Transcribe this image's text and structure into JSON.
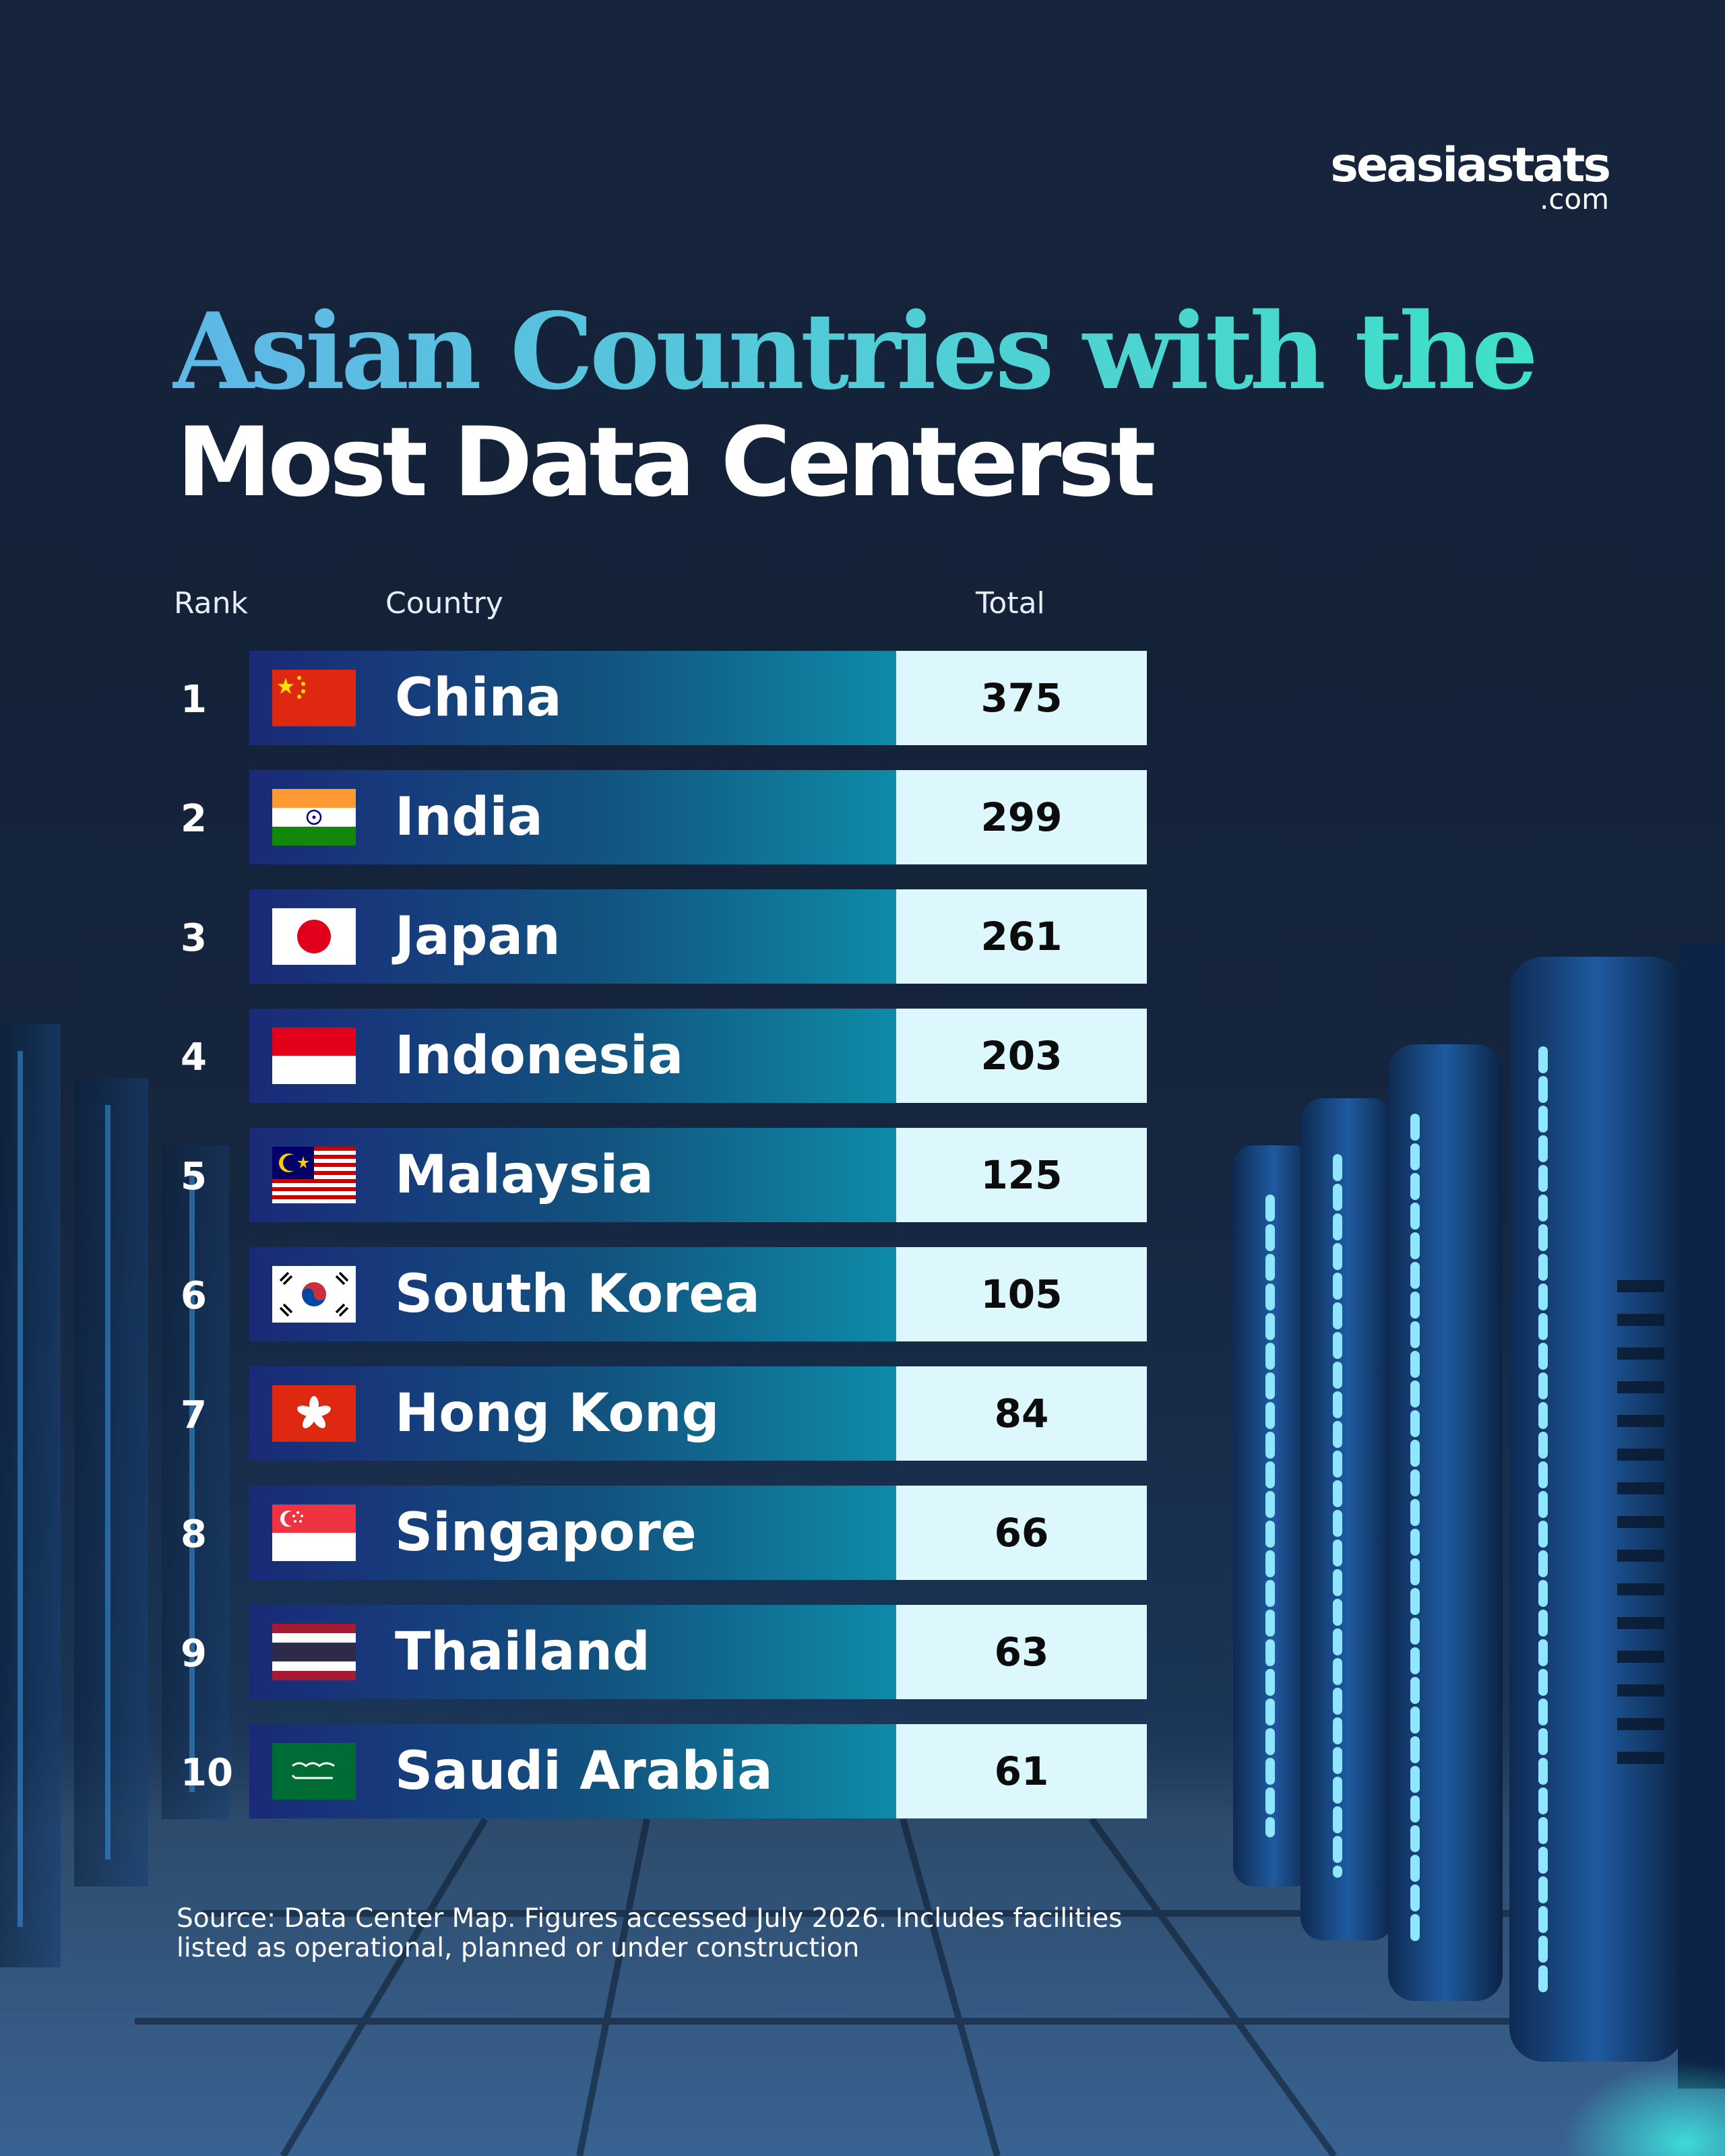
{
  "brand": {
    "name": "seasiastats",
    "suffix": ".com"
  },
  "title": {
    "line1": "Asian Countries with the",
    "line2": "Most Data Centerst"
  },
  "headers": {
    "rank": "Rank",
    "country": "Country",
    "total": "Total"
  },
  "chart_data": {
    "type": "table",
    "columns": [
      "Rank",
      "Country",
      "Total"
    ],
    "rows": [
      {
        "rank": "1",
        "country": "China",
        "total": 375,
        "flag": "china-flag-icon"
      },
      {
        "rank": "2",
        "country": "India",
        "total": 299,
        "flag": "india-flag-icon"
      },
      {
        "rank": "3",
        "country": "Japan",
        "total": 261,
        "flag": "japan-flag-icon"
      },
      {
        "rank": "4",
        "country": "Indonesia",
        "total": 203,
        "flag": "indonesia-flag-icon"
      },
      {
        "rank": "5",
        "country": "Malaysia",
        "total": 125,
        "flag": "malaysia-flag-icon"
      },
      {
        "rank": "6",
        "country": "South Korea",
        "total": 105,
        "flag": "south-korea-flag-icon"
      },
      {
        "rank": "7",
        "country": "Hong Kong",
        "total": 84,
        "flag": "hong-kong-flag-icon"
      },
      {
        "rank": "8",
        "country": "Singapore",
        "total": 66,
        "flag": "singapore-flag-icon"
      },
      {
        "rank": "9",
        "country": "Thailand",
        "total": 63,
        "flag": "thailand-flag-icon"
      },
      {
        "rank": "10",
        "country": "Saudi Arabia",
        "total": 61,
        "flag": "saudi-arabia-flag-icon"
      }
    ]
  },
  "source": "Source: Data Center Map. Figures accessed July 2026. Includes facilities listed as operational, planned or under construction",
  "colors": {
    "title_accent": "#4fd0d4",
    "row_bar_start": "#1a2a78",
    "row_bar_end": "#0e8ba8",
    "total_cell": "#dcf8fc"
  }
}
